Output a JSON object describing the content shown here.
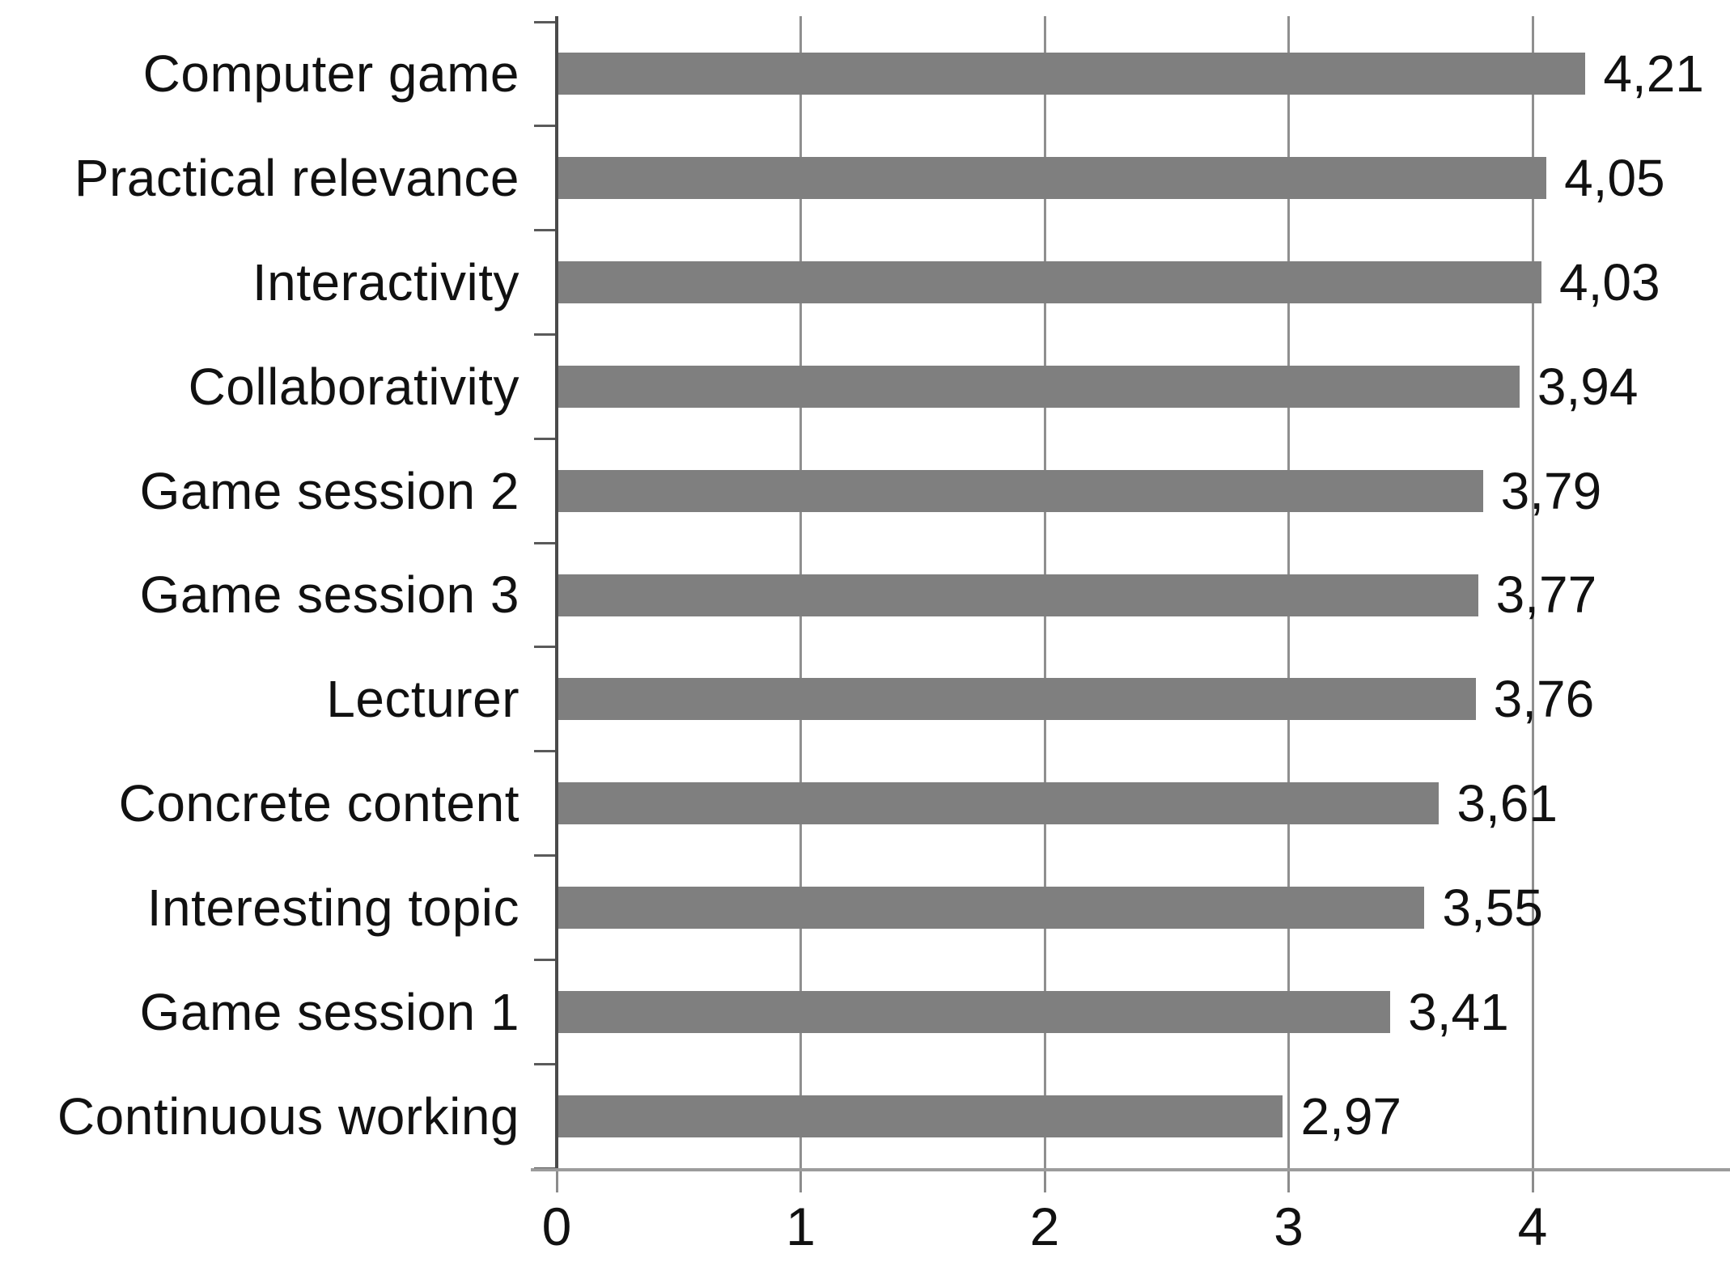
{
  "chart_data": {
    "type": "bar",
    "orientation": "horizontal",
    "title": "",
    "xlabel": "",
    "ylabel": "",
    "categories": [
      "Computer game",
      "Practical relevance",
      "Interactivity",
      "Collaborativity",
      "Game session 2",
      "Game session 3",
      "Lecturer",
      "Concrete content",
      "Interesting topic",
      "Game session 1",
      "Continuous working"
    ],
    "values": [
      4.21,
      4.05,
      4.03,
      3.94,
      3.79,
      3.77,
      3.76,
      3.61,
      3.55,
      3.41,
      2.97
    ],
    "value_labels": [
      "4,21",
      "4,05",
      "4,03",
      "3,94",
      "3,79",
      "3,77",
      "3,76",
      "3,61",
      "3,55",
      "3,41",
      "2,97"
    ],
    "decimal_separator": ",",
    "x_ticks": [
      "0",
      "1",
      "2",
      "3",
      "4"
    ],
    "xlim": [
      0,
      4.8
    ],
    "grid": true,
    "legend": "none",
    "colors": {
      "bar": "#7f7f7f",
      "gridline": "#8f8f8f",
      "y_axis": "#4a4a4a",
      "x_axis": "#9c9c9c",
      "text": "#111111",
      "background": "#ffffff"
    }
  }
}
